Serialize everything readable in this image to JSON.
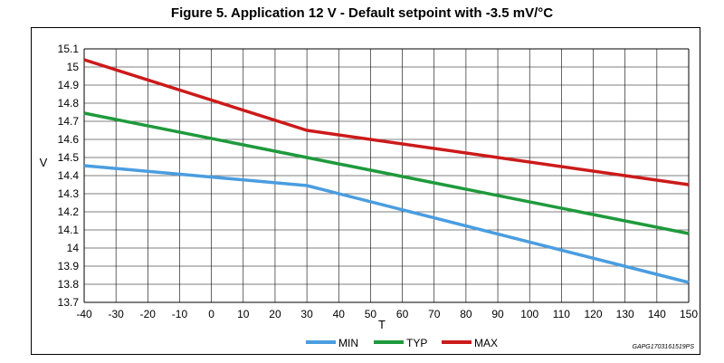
{
  "chart_data": {
    "type": "line",
    "title": "Figure 5. Application 12 V - Default setpoint with -3.5 mV/°C",
    "xlabel": "T",
    "ylabel": "V",
    "xlim": [
      -40,
      150
    ],
    "ylim": [
      13.7,
      15.1
    ],
    "x_ticks": [
      -40,
      -30,
      -20,
      -10,
      0,
      10,
      20,
      30,
      40,
      50,
      60,
      70,
      80,
      90,
      100,
      110,
      120,
      130,
      140,
      150
    ],
    "y_ticks": [
      "13.7",
      "13.8",
      "13.9",
      "14",
      "14.1",
      "14.2",
      "14.3",
      "14.4",
      "14.5",
      "14.6",
      "14.7",
      "14.8",
      "14.9",
      "15",
      "15.1"
    ],
    "grid": true,
    "legend": "bottom",
    "series": [
      {
        "name": "MIN",
        "color": "#4a9de0",
        "x": [
          -40,
          30,
          150
        ],
        "y": [
          14.455,
          14.345,
          13.81
        ]
      },
      {
        "name": "TYP",
        "color": "#1f9a3c",
        "x": [
          -40,
          30,
          150
        ],
        "y": [
          14.745,
          14.5,
          14.08
        ]
      },
      {
        "name": "MAX",
        "color": "#cc1a1a",
        "x": [
          -40,
          30,
          150
        ],
        "y": [
          15.04,
          14.65,
          14.35
        ]
      }
    ],
    "annotation": "GAPG1703161519PS"
  }
}
